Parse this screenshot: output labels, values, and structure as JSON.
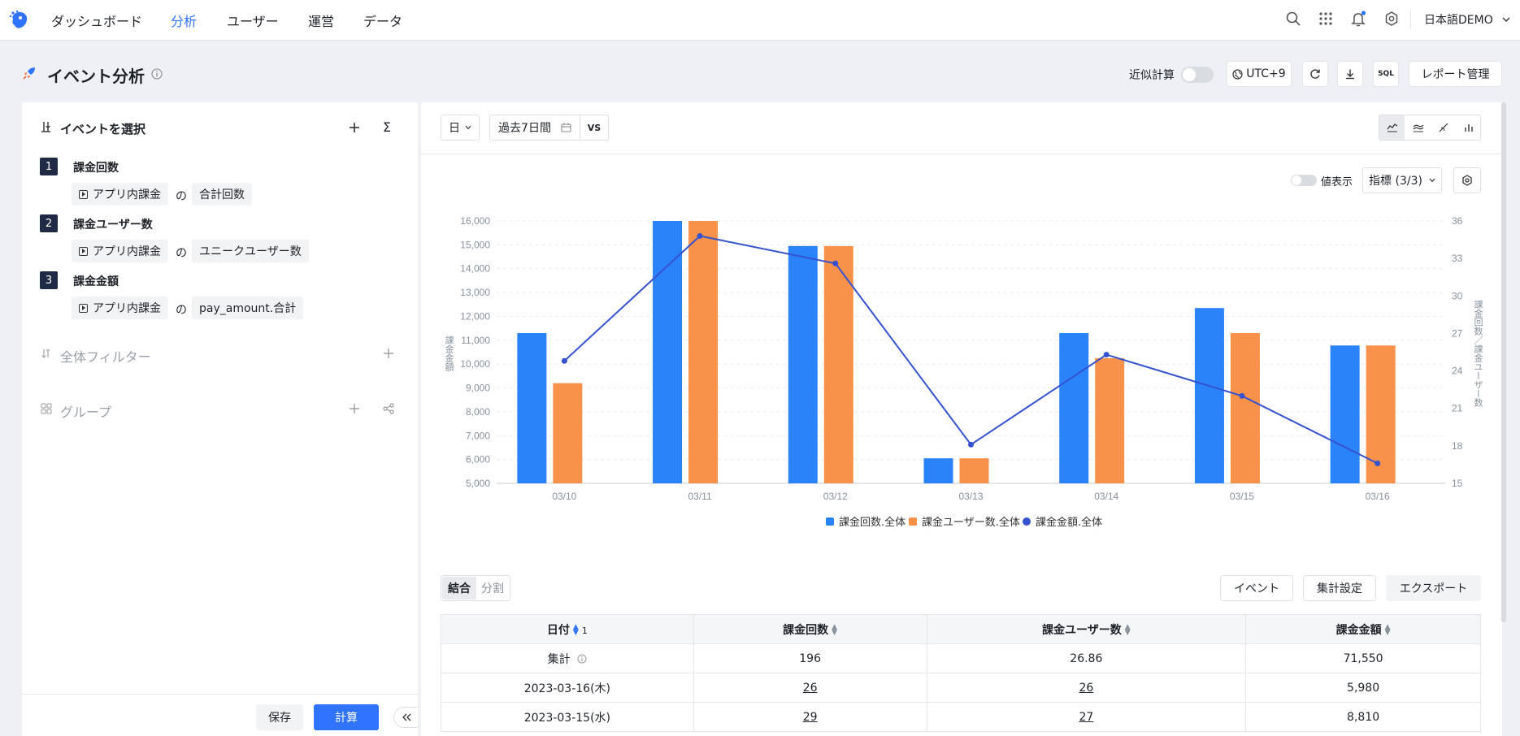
{
  "nav": {
    "items": [
      "ダッシュボード",
      "分析",
      "ユーザー",
      "運営",
      "データ"
    ],
    "active_index": 1,
    "project": "日本語DEMO"
  },
  "header": {
    "title": "イベント分析",
    "approx_label": "近似計算",
    "timezone": "UTC+9",
    "sql_label": "SQL",
    "report_label": "レポート管理"
  },
  "left": {
    "section_title": "イベントを選択",
    "metrics": [
      {
        "num": "1",
        "name": "課金回数",
        "event": "アプリ内課金",
        "of": "の",
        "agg": "合計回数"
      },
      {
        "num": "2",
        "name": "課金ユーザー数",
        "event": "アプリ内課金",
        "of": "の",
        "agg": "ユニークユーザー数"
      },
      {
        "num": "3",
        "name": "課金金額",
        "event": "アプリ内課金",
        "of": "の",
        "agg": "pay_amount.合計"
      }
    ],
    "filter_label": "全体フィルター",
    "group_label": "グループ",
    "save_label": "保存",
    "calc_label": "計算"
  },
  "toolbar": {
    "granularity": "日",
    "date_range": "過去7日間",
    "vs_label": "VS",
    "value_display": "値表示",
    "metrics_select": "指標 (3/3)"
  },
  "chart_data": {
    "type": "bar",
    "categories": [
      "03/10",
      "03/11",
      "03/12",
      "03/13",
      "03/14",
      "03/15",
      "03/16"
    ],
    "series": [
      {
        "name": "課金回数.全体",
        "type": "bar",
        "axis": "left",
        "color": "#2a83f8",
        "values": [
          11300,
          16000,
          14950,
          6050,
          11300,
          12350,
          10780
        ]
      },
      {
        "name": "課金ユーザー数.全体",
        "type": "bar",
        "axis": "left",
        "color": "#f8914a",
        "values": [
          9200,
          16000,
          14950,
          6050,
          10250,
          11300,
          10780
        ]
      },
      {
        "name": "課金金額.全体",
        "type": "line",
        "axis": "right",
        "color": "#3452cf",
        "values": [
          24.8,
          34.8,
          32.6,
          18.1,
          25.3,
          22.0,
          16.6
        ]
      }
    ],
    "ylim": [
      5000,
      16000
    ],
    "y_ticks": [
      "5,000",
      "6,000",
      "7,000",
      "8,000",
      "9,000",
      "10,000",
      "11,000",
      "12,000",
      "13,000",
      "14,000",
      "15,000",
      "16,000"
    ],
    "y2lim": [
      15,
      36
    ],
    "y2_ticks": [
      "15",
      "18",
      "21",
      "24",
      "27",
      "30",
      "33",
      "36"
    ],
    "ylabel": "課金金額",
    "y2label": "課金回数／課金ユーザー数",
    "grid": true,
    "legend": "bottom"
  },
  "table": {
    "tab_merge": "結合",
    "tab_split": "分割",
    "event_btn": "イベント",
    "agg_btn": "集計設定",
    "export_btn": "エクスポート",
    "headers": [
      "日付",
      "課金回数",
      "課金ユーザー数",
      "課金金額"
    ],
    "sort_index": "1",
    "rows": [
      [
        "集計",
        "196",
        "26.86",
        "71,550"
      ],
      [
        "2023-03-16(木)",
        "26",
        "26",
        "5,980"
      ],
      [
        "2023-03-15(水)",
        "29",
        "27",
        "8,810"
      ]
    ]
  }
}
